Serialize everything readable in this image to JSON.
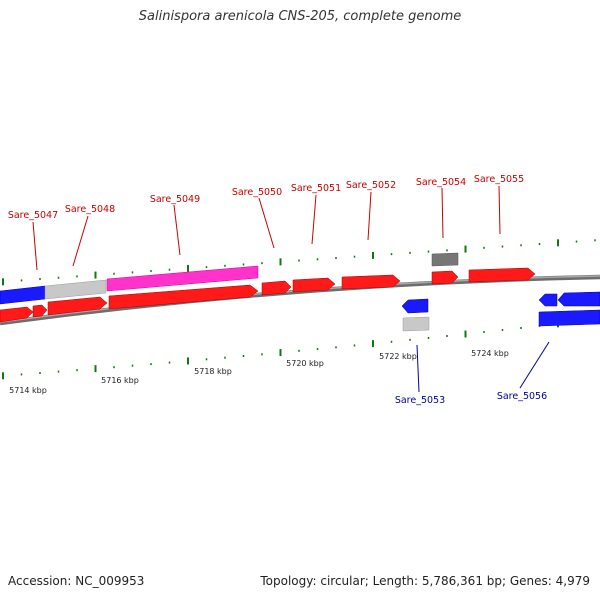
{
  "title": "Salinispora arenicola CNS-205, complete genome",
  "footer": {
    "accession": "Accession: NC_009953",
    "topology": "Topology: circular; Length: 5,786,361 bp; Genes: 4,979"
  },
  "colors": {
    "forward_label": "#cc0000",
    "reverse_label": "#0000aa",
    "cds_forward": "#ff1a1a",
    "cds_reverse": "#1a1aff",
    "cds_pink": "#ff33cc",
    "pseudo_gray": "#c8c8c8",
    "rna_dark": "#777777",
    "backbone": "#888888",
    "tick": "#117711"
  },
  "kbp_labels": [
    "5714 kbp",
    "5716 kbp",
    "5718 kbp",
    "5720 kbp",
    "5722 kbp",
    "5724 kbp"
  ],
  "genes": [
    {
      "name": "Sare_5047",
      "strand": "forward"
    },
    {
      "name": "Sare_5048",
      "strand": "forward"
    },
    {
      "name": "Sare_5049",
      "strand": "forward"
    },
    {
      "name": "Sare_5050",
      "strand": "forward"
    },
    {
      "name": "Sare_5051",
      "strand": "forward"
    },
    {
      "name": "Sare_5052",
      "strand": "forward"
    },
    {
      "name": "Sare_5054",
      "strand": "forward"
    },
    {
      "name": "Sare_5055",
      "strand": "forward"
    },
    {
      "name": "Sare_5053",
      "strand": "reverse"
    },
    {
      "name": "Sare_5056",
      "strand": "reverse"
    }
  ]
}
